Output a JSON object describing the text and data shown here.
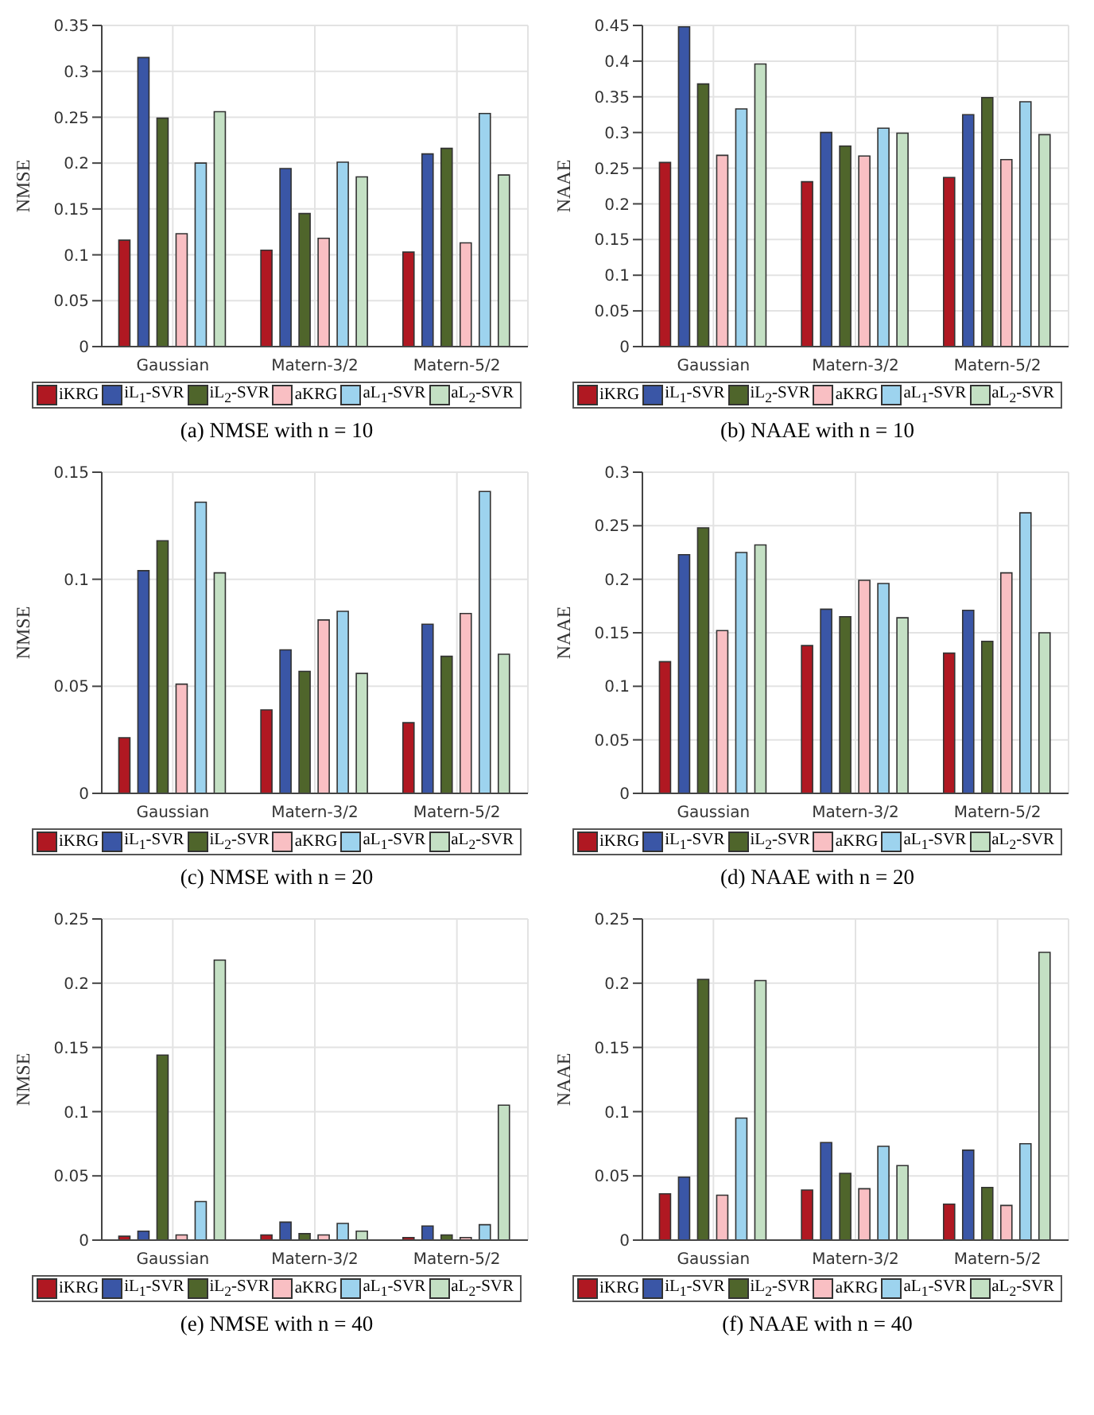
{
  "chart_data": [
    {
      "type": "bar",
      "title": "(a) NMSE with n = 10",
      "ylabel": "NMSE",
      "categories": [
        "Gaussian",
        "Matern-3/2",
        "Matern-5/2"
      ],
      "ylim": [
        0,
        0.35
      ],
      "yticks": [
        0,
        0.05,
        0.1,
        0.15,
        0.2,
        0.25,
        0.3,
        0.35
      ],
      "grid": true,
      "legend": "bottom",
      "series": [
        {
          "name": "iKRG",
          "color": "#b01822",
          "values": [
            0.116,
            0.105,
            0.103
          ]
        },
        {
          "name": "iL$_{1}$-SVR",
          "color": "#3a56a6",
          "values": [
            0.315,
            0.194,
            0.21
          ]
        },
        {
          "name": "iL$_{2}$-SVR",
          "color": "#4f652b",
          "values": [
            0.249,
            0.145,
            0.216
          ]
        },
        {
          "name": "aKRG",
          "color": "#f9bfc3",
          "values": [
            0.123,
            0.118,
            0.113
          ]
        },
        {
          "name": "aL$_{1}$-SVR",
          "color": "#9dd3ee",
          "values": [
            0.2,
            0.201,
            0.254
          ]
        },
        {
          "name": "aL$_{2}$-SVR",
          "color": "#c4e0c4",
          "values": [
            0.256,
            0.185,
            0.187
          ]
        }
      ]
    },
    {
      "type": "bar",
      "title": "(b) NAAE with n = 10",
      "ylabel": "NAAE",
      "categories": [
        "Gaussian",
        "Matern-3/2",
        "Matern-5/2"
      ],
      "ylim": [
        0,
        0.45
      ],
      "yticks": [
        0,
        0.05,
        0.1,
        0.15,
        0.2,
        0.25,
        0.3,
        0.35,
        0.4,
        0.45
      ],
      "grid": true,
      "legend": "bottom",
      "series": [
        {
          "name": "iKRG",
          "color": "#b01822",
          "values": [
            0.258,
            0.231,
            0.237
          ]
        },
        {
          "name": "iL$_{1}$-SVR",
          "color": "#3a56a6",
          "values": [
            0.448,
            0.3,
            0.325
          ]
        },
        {
          "name": "iL$_{2}$-SVR",
          "color": "#4f652b",
          "values": [
            0.368,
            0.281,
            0.349
          ]
        },
        {
          "name": "aKRG",
          "color": "#f9bfc3",
          "values": [
            0.268,
            0.267,
            0.262
          ]
        },
        {
          "name": "aL$_{1}$-SVR",
          "color": "#9dd3ee",
          "values": [
            0.333,
            0.306,
            0.343
          ]
        },
        {
          "name": "aL$_{2}$-SVR",
          "color": "#c4e0c4",
          "values": [
            0.396,
            0.299,
            0.297
          ]
        }
      ]
    },
    {
      "type": "bar",
      "title": "(c) NMSE with n = 20",
      "ylabel": "NMSE",
      "categories": [
        "Gaussian",
        "Matern-3/2",
        "Matern-5/2"
      ],
      "ylim": [
        0,
        0.15
      ],
      "yticks": [
        0,
        0.05,
        0.1,
        0.15
      ],
      "grid": true,
      "legend": "bottom",
      "series": [
        {
          "name": "iKRG",
          "color": "#b01822",
          "values": [
            0.026,
            0.039,
            0.033
          ]
        },
        {
          "name": "iL$_{1}$-SVR",
          "color": "#3a56a6",
          "values": [
            0.104,
            0.067,
            0.079
          ]
        },
        {
          "name": "iL$_{2}$-SVR",
          "color": "#4f652b",
          "values": [
            0.118,
            0.057,
            0.064
          ]
        },
        {
          "name": "aKRG",
          "color": "#f9bfc3",
          "values": [
            0.051,
            0.081,
            0.084
          ]
        },
        {
          "name": "aL$_{1}$-SVR",
          "color": "#9dd3ee",
          "values": [
            0.136,
            0.085,
            0.141
          ]
        },
        {
          "name": "aL$_{2}$-SVR",
          "color": "#c4e0c4",
          "values": [
            0.103,
            0.056,
            0.065
          ]
        }
      ]
    },
    {
      "type": "bar",
      "title": "(d) NAAE with n = 20",
      "ylabel": "NAAE",
      "categories": [
        "Gaussian",
        "Matern-3/2",
        "Matern-5/2"
      ],
      "ylim": [
        0,
        0.3
      ],
      "yticks": [
        0,
        0.05,
        0.1,
        0.15,
        0.2,
        0.25,
        0.3
      ],
      "grid": true,
      "legend": "bottom",
      "series": [
        {
          "name": "iKRG",
          "color": "#b01822",
          "values": [
            0.123,
            0.138,
            0.131
          ]
        },
        {
          "name": "iL$_{1}$-SVR",
          "color": "#3a56a6",
          "values": [
            0.223,
            0.172,
            0.171
          ]
        },
        {
          "name": "iL$_{2}$-SVR",
          "color": "#4f652b",
          "values": [
            0.248,
            0.165,
            0.142
          ]
        },
        {
          "name": "aKRG",
          "color": "#f9bfc3",
          "values": [
            0.152,
            0.199,
            0.206
          ]
        },
        {
          "name": "aL$_{1}$-SVR",
          "color": "#9dd3ee",
          "values": [
            0.225,
            0.196,
            0.262
          ]
        },
        {
          "name": "aL$_{2}$-SVR",
          "color": "#c4e0c4",
          "values": [
            0.232,
            0.164,
            0.15
          ]
        }
      ]
    },
    {
      "type": "bar",
      "title": "(e) NMSE with n = 40",
      "ylabel": "NMSE",
      "categories": [
        "Gaussian",
        "Matern-3/2",
        "Matern-5/2"
      ],
      "ylim": [
        0,
        0.25
      ],
      "yticks": [
        0,
        0.05,
        0.1,
        0.15,
        0.2,
        0.25
      ],
      "grid": true,
      "legend": "bottom",
      "series": [
        {
          "name": "iKRG",
          "color": "#b01822",
          "values": [
            0.003,
            0.004,
            0.002
          ]
        },
        {
          "name": "iL$_{1}$-SVR",
          "color": "#3a56a6",
          "values": [
            0.007,
            0.014,
            0.011
          ]
        },
        {
          "name": "iL$_{2}$-SVR",
          "color": "#4f652b",
          "values": [
            0.144,
            0.005,
            0.004
          ]
        },
        {
          "name": "aKRG",
          "color": "#f9bfc3",
          "values": [
            0.004,
            0.004,
            0.002
          ]
        },
        {
          "name": "aL$_{1}$-SVR",
          "color": "#9dd3ee",
          "values": [
            0.03,
            0.013,
            0.012
          ]
        },
        {
          "name": "aL$_{2}$-SVR",
          "color": "#c4e0c4",
          "values": [
            0.218,
            0.007,
            0.105
          ]
        }
      ]
    },
    {
      "type": "bar",
      "title": "(f) NAAE with n = 40",
      "ylabel": "NAAE",
      "categories": [
        "Gaussian",
        "Matern-3/2",
        "Matern-5/2"
      ],
      "ylim": [
        0,
        0.25
      ],
      "yticks": [
        0,
        0.05,
        0.1,
        0.15,
        0.2,
        0.25
      ],
      "grid": true,
      "legend": "bottom",
      "series": [
        {
          "name": "iKRG",
          "color": "#b01822",
          "values": [
            0.036,
            0.039,
            0.028
          ]
        },
        {
          "name": "iL$_{1}$-SVR",
          "color": "#3a56a6",
          "values": [
            0.049,
            0.076,
            0.07
          ]
        },
        {
          "name": "iL$_{2}$-SVR",
          "color": "#4f652b",
          "values": [
            0.203,
            0.052,
            0.041
          ]
        },
        {
          "name": "aKRG",
          "color": "#f9bfc3",
          "values": [
            0.035,
            0.04,
            0.027
          ]
        },
        {
          "name": "aL$_{1}$-SVR",
          "color": "#9dd3ee",
          "values": [
            0.095,
            0.073,
            0.075
          ]
        },
        {
          "name": "aL$_{2}$-SVR",
          "color": "#c4e0c4",
          "values": [
            0.202,
            0.058,
            0.224
          ]
        }
      ]
    }
  ]
}
